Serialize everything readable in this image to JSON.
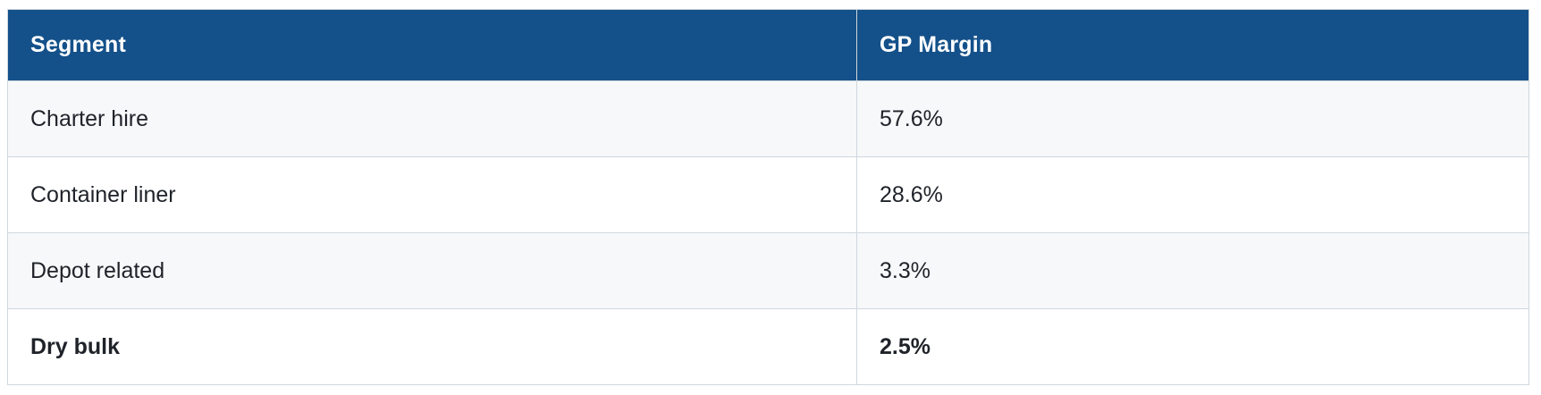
{
  "table": {
    "columns": [
      {
        "key": "segment",
        "label": "Segment"
      },
      {
        "key": "gp_margin",
        "label": "GP Margin"
      }
    ],
    "rows": [
      {
        "segment": "Charter hire",
        "gp_margin": "57.6%",
        "emphasized": false
      },
      {
        "segment": "Container liner",
        "gp_margin": "28.6%",
        "emphasized": false
      },
      {
        "segment": "Depot related",
        "gp_margin": "3.3%",
        "emphasized": false
      },
      {
        "segment": "Dry bulk",
        "gp_margin": "2.5%",
        "emphasized": true
      }
    ]
  },
  "colors": {
    "header_background": "#14518a",
    "header_text": "#ffffff",
    "row_stripe_background": "#f6f8fa",
    "row_background": "#ffffff",
    "border": "#d0d7de",
    "body_text": "#1f2329"
  },
  "chart_data": {
    "type": "table",
    "columns": [
      "Segment",
      "GP Margin"
    ],
    "categories": [
      "Charter hire",
      "Container liner",
      "Depot related",
      "Dry bulk"
    ],
    "values": [
      57.6,
      28.6,
      3.3,
      2.5
    ],
    "value_unit": "%"
  }
}
